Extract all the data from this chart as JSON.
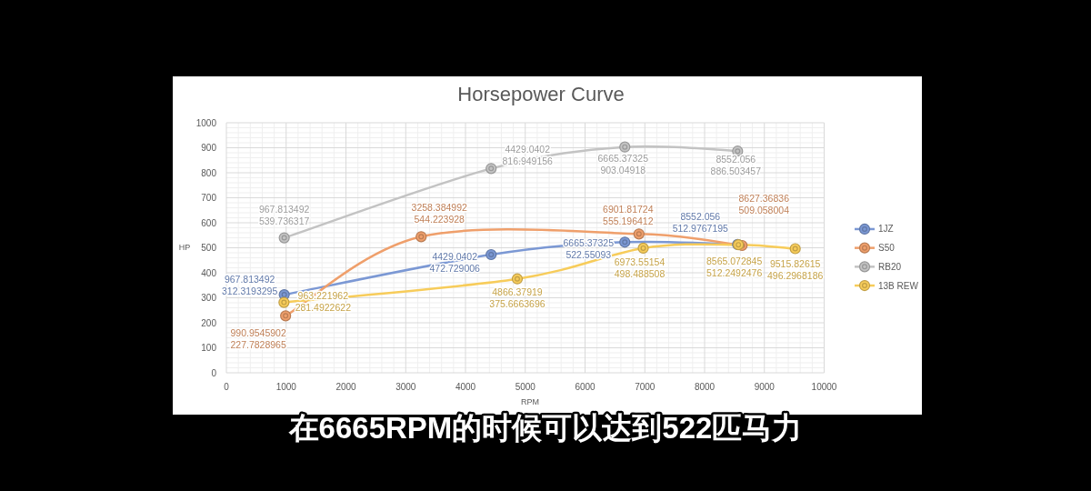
{
  "chart_data": {
    "type": "line",
    "title": "Horsepower Curve",
    "xlabel": "RPM",
    "ylabel": "HP",
    "xlim": [
      0,
      10000
    ],
    "xticks": [
      0,
      1000,
      2000,
      3000,
      4000,
      5000,
      6000,
      7000,
      8000,
      9000,
      10000
    ],
    "ylim": [
      0,
      1000
    ],
    "yticks": [
      0,
      100,
      200,
      300,
      400,
      500,
      600,
      700,
      800,
      900,
      1000
    ],
    "grid": true,
    "legend": "right",
    "marker": "circle",
    "annotations": [
      "在6665RPM的时候可以达到522匹马力"
    ],
    "series": [
      {
        "name": "1JZ",
        "color": "#7b98d4",
        "x": [
          967.813492,
          4429.0402,
          6665.37325,
          8552.056
        ],
        "values": [
          312.3193295,
          472.729006,
          522.55093,
          512.9767195
        ],
        "value_labels": [
          "967.813492\n312.3193295",
          "4429.0402\n472.729006",
          "6665.37325\n522.55093",
          "8552.056\n512.9767195"
        ]
      },
      {
        "name": "S50",
        "color": "#ef9f6b",
        "x": [
          990.9545902,
          3258.384992,
          6901.81724,
          8627.36836
        ],
        "values": [
          227.7828965,
          544.223928,
          555.196412,
          509.058004
        ],
        "value_labels": [
          "990.9545902\n227.7828965",
          "3258.384992\n544.223928",
          "6901.81724\n555.196412",
          "8627.36836\n509.058004"
        ]
      },
      {
        "name": "RB20",
        "color": "#c3c3c3",
        "x": [
          967.813492,
          4429.0402,
          6665.37325,
          8552.056
        ],
        "values": [
          539.736317,
          816.949156,
          903.04918,
          886.503457
        ],
        "value_labels": [
          "967.813492\n539.736317",
          "4429.0402\n816.949156",
          "6665.37325\n903.04918",
          "8552.056\n886.503457"
        ]
      },
      {
        "name": "13B REW",
        "color": "#f7cc5a",
        "x": [
          963.221962,
          4866.37919,
          6973.55154,
          8565.072845,
          9515.82615
        ],
        "values": [
          281.4922622,
          375.6663696,
          498.488508,
          512.2492476,
          496.2968186
        ],
        "value_labels": [
          "963.221962\n281.4922622",
          "4866.37919\n375.6663696",
          "6973.55154\n498.488508",
          "8565.072845\n512.2492476",
          "9515.82615\n496.2968186"
        ]
      }
    ]
  }
}
